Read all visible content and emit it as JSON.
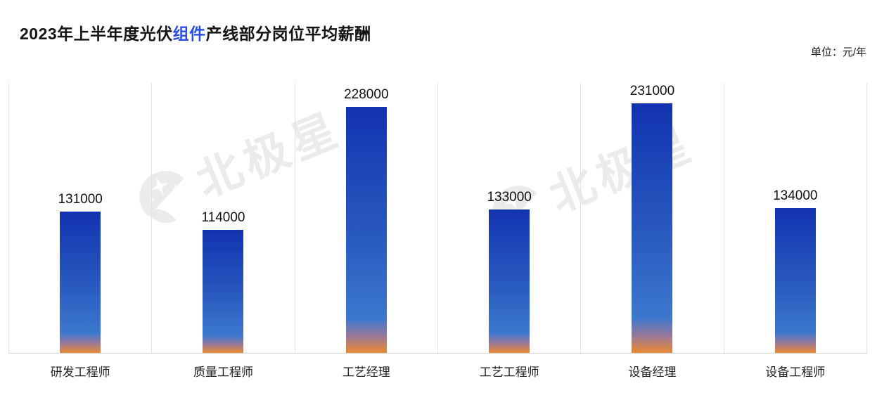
{
  "header": {
    "title_prefix": "2023年上半年度光伏",
    "title_highlight": "组件",
    "title_suffix": "产线部分岗位平均薪酬",
    "unit_label": "单位：元/年"
  },
  "watermark": {
    "brand_text": "北极星",
    "logo": "polaris-star-circle-logo"
  },
  "colors": {
    "title_highlight": "#2b4fe8",
    "bar_top": "#1233b0",
    "bar_mid1": "#2a5cc0",
    "bar_mid2": "#3c78ce",
    "bar_blend": "#97789b",
    "bar_bottom": "#e0883e",
    "gridline": "#e2e2e2",
    "axis_line": "#d8d8d8",
    "watermark": "#ebebeb"
  },
  "chart_data": {
    "type": "bar",
    "title": "2023年上半年度光伏组件产线部分岗位平均薪酬",
    "unit": "元/年",
    "categories": [
      "研发工程师",
      "质量工程师",
      "工艺经理",
      "工艺工程师",
      "设备经理",
      "设备工程师"
    ],
    "values": [
      131000,
      114000,
      228000,
      133000,
      231000,
      134000
    ],
    "xlabel": "",
    "ylabel": "",
    "ylim": [
      0,
      250000
    ],
    "grid": "vertical column separators only, bottom axis line, no y-axis ticks",
    "legend": "none",
    "value_labels": "above each bar",
    "bar_style": "vertical gradient deep blue to lighter blue with orange base"
  }
}
